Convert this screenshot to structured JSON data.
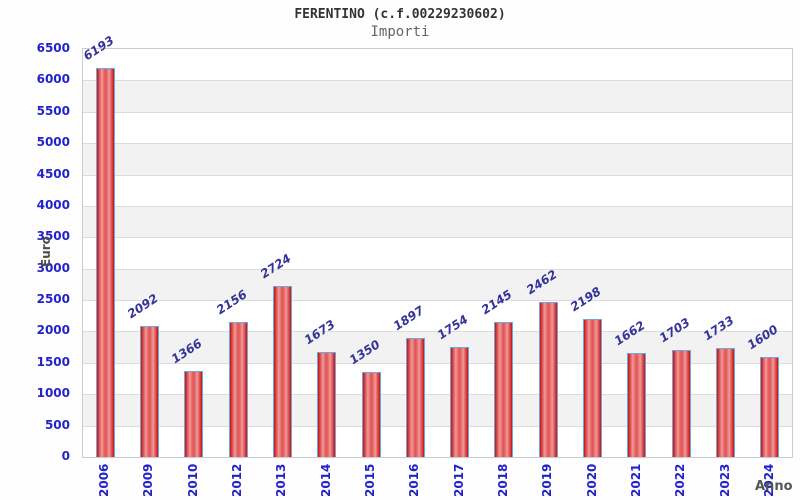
{
  "header": {
    "title": "FERENTINO (c.f.00229230602)",
    "subtitle": "Importi"
  },
  "chart_data": {
    "type": "bar",
    "title": "FERENTINO (c.f.00229230602)",
    "subtitle": "Importi",
    "xlabel": "Anno",
    "ylabel": "Euro",
    "categories": [
      "2006",
      "2009",
      "2010",
      "2012",
      "2013",
      "2014",
      "2015",
      "2016",
      "2017",
      "2018",
      "2019",
      "2020",
      "2021",
      "2022",
      "2023",
      "2024"
    ],
    "values": [
      6193,
      2092,
      1366,
      2156,
      2724,
      1673,
      1350,
      1897,
      1754,
      2145,
      2462,
      2198,
      1662,
      1703,
      1733,
      1600
    ],
    "ylim": [
      0,
      6500
    ],
    "ytick_step": 500,
    "grid": "horizontal-alternating-bands",
    "legend": "none",
    "colors": {
      "bar_fill_edge": "#c31111",
      "bar_fill_highlight": "#f29898",
      "bar_fill_mid": "#df5050",
      "bar_border": "#6fa8dc",
      "tick_label": "#2222cc",
      "value_label": "#333399",
      "band_gray": "#f2f2f2",
      "band_white": "#ffffff",
      "gridline": "#dcdcdc",
      "plot_border": "#cccccc",
      "title": "#333333",
      "subtitle": "#666666",
      "axis_title": "#4d4d4d"
    }
  }
}
